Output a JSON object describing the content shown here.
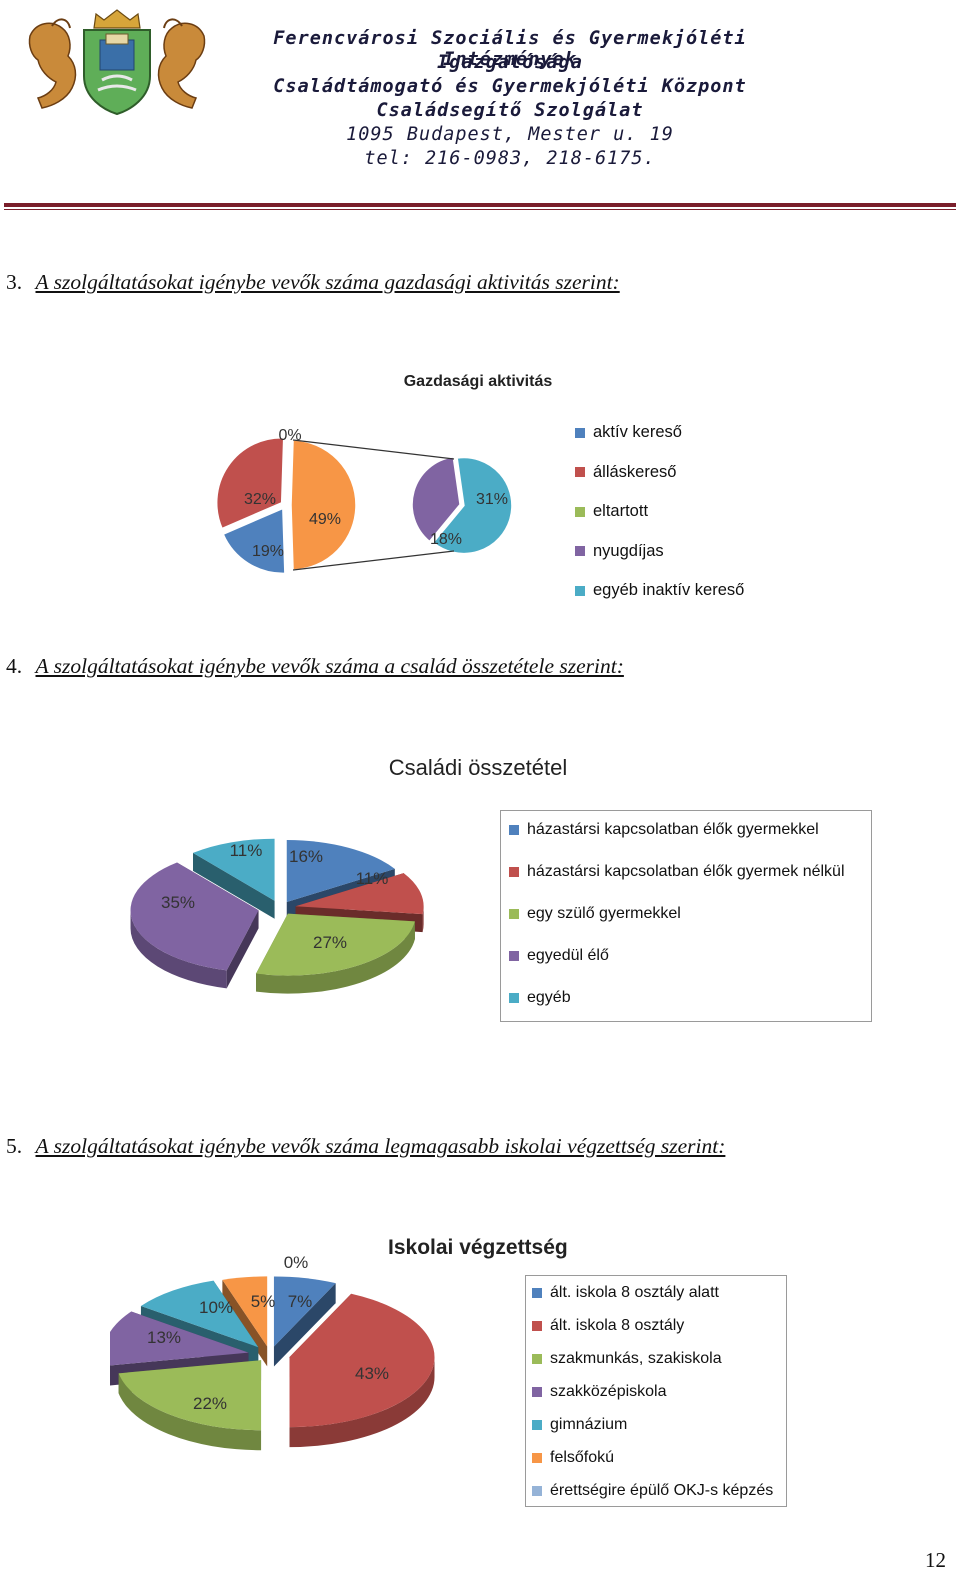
{
  "header": {
    "lines": [
      "Ferencvárosi Szociális és Gyermekjóléti Intézmények",
      "Igazgatósága",
      "Családtámogató és Gyermekjóléti Központ",
      "Családsegítő Szolgálat",
      "1095 Budapest, Mester u. 19",
      "tel: 216-0983, 218-6175."
    ],
    "emblem": "coat-of-arms"
  },
  "sections": [
    {
      "number": "3.",
      "title": "A szolgáltatásokat igénybe vevők száma gazdasági aktivitás szerint:"
    },
    {
      "number": "4.",
      "title": "A szolgáltatásokat igénybe vevők száma a család összetétele szerint:"
    },
    {
      "number": "5.",
      "title": "A szolgáltatásokat igénybe vevők száma legmagasabb iskolai végzettség szerint:"
    }
  ],
  "chart_data": [
    {
      "type": "pie",
      "variant": "pie-of-pie",
      "title": "Gazdasági aktivitás",
      "legend_position": "right",
      "categories": [
        "aktív kereső",
        "álláskereső",
        "eltartott",
        "nyugdíjas",
        "egyéb inaktív kereső"
      ],
      "values": [
        19,
        32,
        0,
        18,
        31
      ],
      "labels": [
        "19%",
        "32%",
        "0%",
        "18%",
        "31%"
      ],
      "secondary_total_label": "49%",
      "colors": [
        "#4f81bd",
        "#c0504d",
        "#9bbb59",
        "#8064a2",
        "#4bacc6"
      ],
      "secondary_color": "#f79646"
    },
    {
      "type": "pie",
      "variant": "3d-exploded",
      "title": "Családi összetétel",
      "legend_position": "right",
      "categories": [
        "házastársi kapcsolatban élők gyermekkel",
        "házastársi kapcsolatban élők gyermek nélkül",
        "egy szülő gyermekkel",
        "egyedül élő",
        "egyéb"
      ],
      "values": [
        16,
        11,
        27,
        35,
        11
      ],
      "labels": [
        "16%",
        "11%",
        "27%",
        "35%",
        "11%"
      ],
      "colors": [
        "#4f81bd",
        "#c0504d",
        "#9bbb59",
        "#8064a2",
        "#4bacc6"
      ]
    },
    {
      "type": "pie",
      "variant": "3d-exploded",
      "title": "Iskolai végzettség",
      "legend_position": "right",
      "categories": [
        "ált. iskola 8 osztály alatt",
        "ált. iskola 8 osztály",
        "szakmunkás, szakiskola",
        "szakközépiskola",
        "gimnázium",
        "felsőfokú",
        "érettségire épülő OKJ-s képzés"
      ],
      "values": [
        7,
        43,
        22,
        13,
        10,
        5,
        0
      ],
      "labels": [
        "7%",
        "43%",
        "22%",
        "13%",
        "10%",
        "5%",
        "0%"
      ],
      "colors": [
        "#4f81bd",
        "#c0504d",
        "#9bbb59",
        "#8064a2",
        "#4bacc6",
        "#f79646",
        "#95b3d7"
      ]
    }
  ],
  "page_number": "12"
}
